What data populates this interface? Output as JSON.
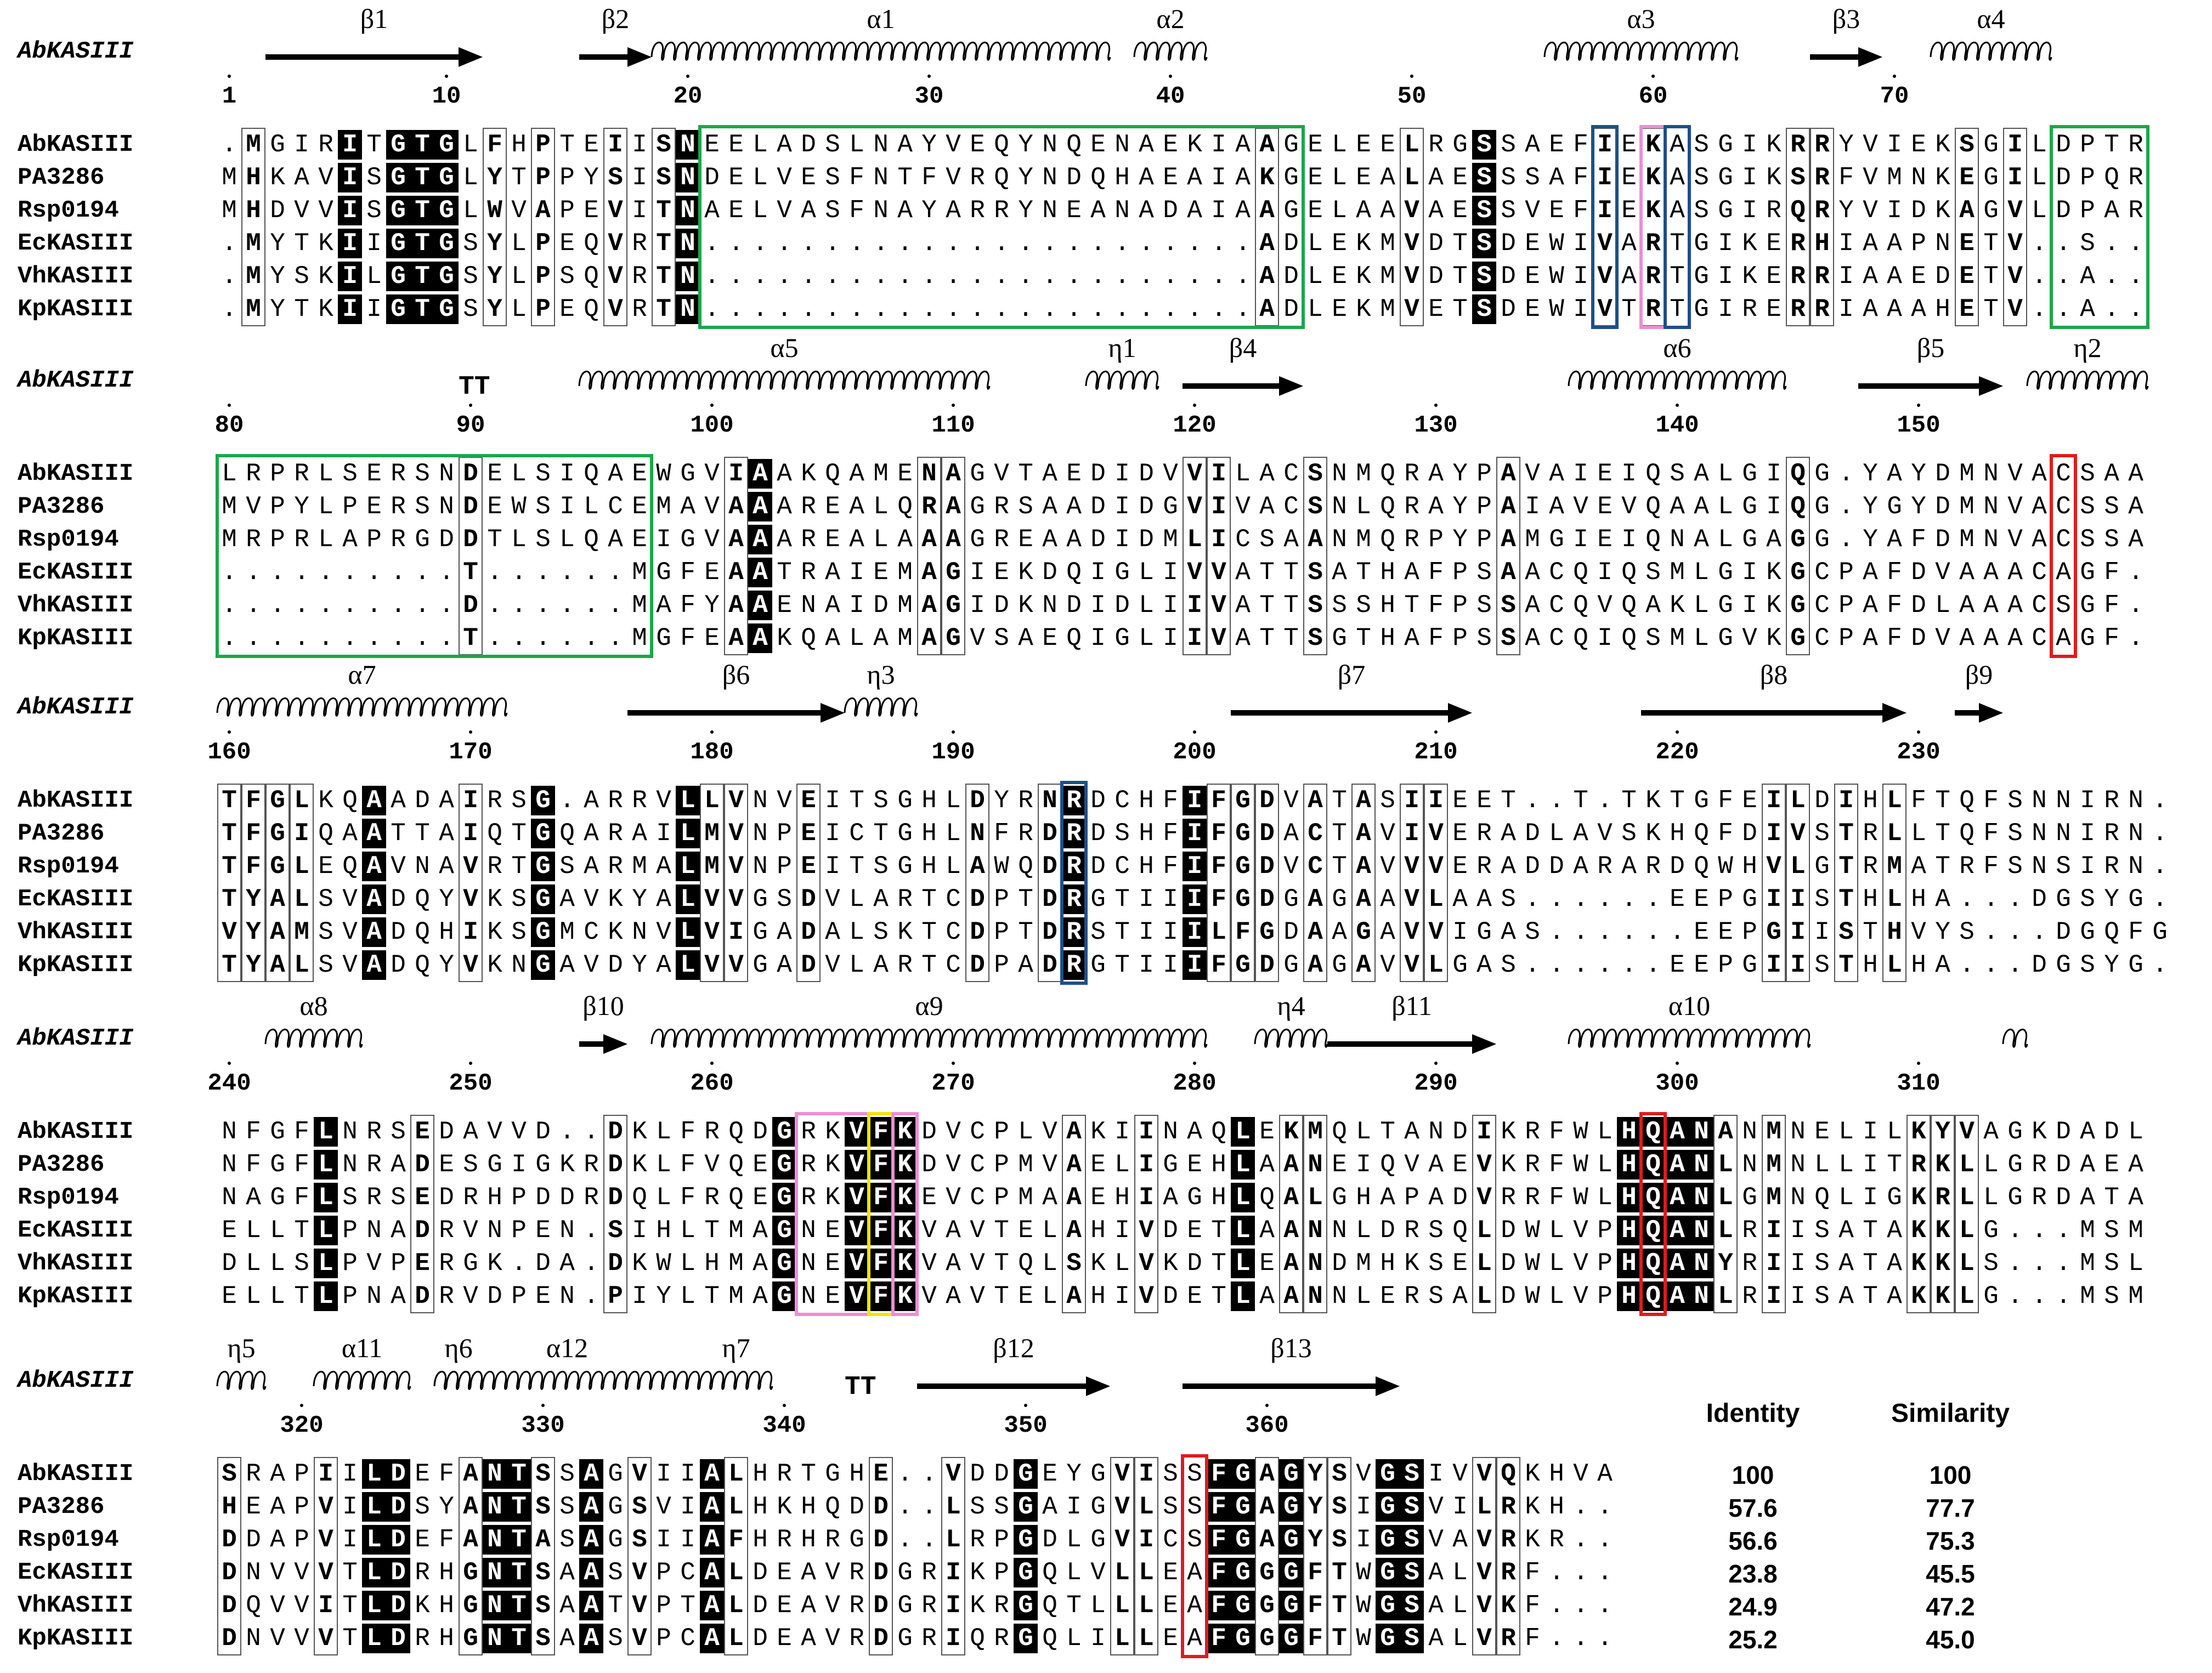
{
  "alignment": {
    "reference": "AbKASIII",
    "names": [
      "AbKASIII",
      "PA3286",
      "Rsp0194",
      "EcKASIII",
      "VhKASIII",
      "KpKASIII"
    ],
    "blocks": [
      {
        "start": 1,
        "sequences": [
          ".MGIRITGTGLFHPTEIISNEELADSLNAYVEQYNQENAEKIAAGELEELRGSSAEFIEKASGIKRRYVIEKSGILDPTR",
          "MHKAVISGTGLYTPPYSISNDELVESFNTFVRQYNDQHAEAIAKGELEALAESSSAFIEKASGIKSRFVMNKEGILDPQR",
          "MHDVVISGTGLWVAPEVITNAELVASFNAYARRYNEANADAIAAGELAAVAESSVEFIEKASGIRQRYVIDKAGVLDPAR",
          ".MYTKIIGTGSYLPEQVRTN.......................ADLEKMVDTSDEWIVARTGIKERHIAAPNETV..S.",
          ".MYSKILGTGSYLPSQVRTN.......................ADLEKMVDTSDEWIVARTGIKERRIAAEDETV..A.",
          ".MYTKIIGTGSYLPEQVRTN.......................ADLEKMVETSDEWIVTRTGIRERRIAAAHETV..A."
        ],
        "ticks": [
          1,
          10,
          20,
          30,
          40,
          50,
          60,
          70
        ],
        "elements": [
          {
            "type": "strand",
            "label": "β1",
            "from": 3,
            "to": 11
          },
          {
            "type": "strand",
            "label": "β2",
            "from": 16,
            "to": 18
          },
          {
            "type": "helix",
            "label": "α1",
            "from": 19,
            "to": 37
          },
          {
            "type": "helix",
            "label": "α2",
            "from": 39,
            "to": 41
          },
          {
            "type": "helix",
            "label": "α3",
            "from": 56,
            "to": 63
          },
          {
            "type": "strand",
            "label": "β3",
            "from": 67,
            "to": 69
          },
          {
            "type": "helix",
            "label": "α4",
            "from": 72,
            "to": 76
          }
        ]
      },
      {
        "start": 80,
        "sequences": [
          "LRPRLSERSNDELSIQAEWGVIAAKQAMENAGVTAEDIDVVILACSNMQRAYPAVAIEIQSALGIQG.YAYDMNVACSAA",
          "MVPYLPERSNDEWSILCEMAVAAAREALQRAGRSAADIDGVIVACSNLQRAYPAIAVEVQAALGIQG.YGYDMNVACSSA",
          "MRPRLAPRGDDTLSLQAEIGVAAAREALAAAGREAADIDMLICSAANMQRPYPAMGIEIQNALGAGG.YAFDMNVACSSA",
          "..........T......MGFEAATRAIEMAGIEKDQIGLIVVATTSATHAFPSAACQIQSMLGIKGCPAFDVAAACAGF",
          "..........D......MAFYAAENAIDMAGIDKNDIDLIIVATTSSSHTFPSSACQVQAKLGIKGCPAFDLAAACSGF",
          "..........T......MGFEAAKQALAMAGVSAEQIGLIIVATTSGTHAFPSSACQIQSMLGVKGCPAFDVAAACAGF"
        ],
        "ticks": [
          80,
          90,
          100,
          110,
          120,
          130,
          140,
          150
        ],
        "elements": [
          {
            "type": "turn",
            "label": "TT",
            "from": 90,
            "to": 91
          },
          {
            "type": "helix",
            "label": "α5",
            "from": 95,
            "to": 111
          },
          {
            "type": "helix",
            "label": "η1",
            "from": 116,
            "to": 118
          },
          {
            "type": "strand",
            "label": "β4",
            "from": 120,
            "to": 124
          },
          {
            "type": "helix",
            "label": "α6",
            "from": 136,
            "to": 144
          },
          {
            "type": "strand",
            "label": "β5",
            "from": 148,
            "to": 153
          },
          {
            "type": "helix",
            "label": "η2",
            "from": 155,
            "to": 159
          }
        ]
      },
      {
        "start": 160,
        "sequences": [
          "TFGLKQAADAIRSG.ARRVLLVNVEITSGHLDYRNRDCHFIFGDVATASIIEET..T.TKTGFEILDIHLFTQFSNNIRN",
          "TFGIQAATTAIQTGQARAILMVNPEICTGHLNFRDRDSHFIFGDACTAVIVERADLAVSKHQFDIVSTRLLTQFSNNIRN",
          "TFGLEQAVNAVRTGSARMALMVNPEITSGHLAWQDRDCHFIFGDVCTAVVVERADDARARDQWHVLGTRMATRFSNSIRN",
          "TYALSVADQYVKSGAVKYALVVGSDVLARTCDPTDRGTIIIFGDGAGAAVLAAS......EEPGIISTHLHA...DGSYG",
          "VYAMSVADQHIKSGMCKNVLVIGADALSKTCDPTDRSTIIILFGDAAGAVVIGAS......EEPGIISTHVYS...DGQFG",
          "TYALSVADQYVKNGAVDYALVVGADVLARTCDPADRGTIIIFGDGAGAVVLGAS......EEPGIISTHLHA...DGSYG"
        ],
        "ticks": [
          160,
          170,
          180,
          190,
          200,
          210,
          220,
          230
        ],
        "elements": [
          {
            "type": "helix",
            "label": "α7",
            "from": 160,
            "to": 171
          },
          {
            "type": "strand",
            "label": "β6",
            "from": 177,
            "to": 185
          },
          {
            "type": "helix",
            "label": "η3",
            "from": 186,
            "to": 188
          },
          {
            "type": "strand",
            "label": "β7",
            "from": 202,
            "to": 211
          },
          {
            "type": "strand",
            "label": "β8",
            "from": 219,
            "to": 229
          },
          {
            "type": "strand",
            "label": "β9",
            "from": 232,
            "to": 233
          }
        ]
      },
      {
        "start": 240,
        "sequences": [
          "NFGFLNRSEDAVVD..DKLFRQDGRKVFKDVCPLVAKIINAQLEKMQLTANDIKRFWLHQANANMNELILKYVAGKDADL",
          "NFGFLNRADESGIGKRDKLFVQEGRKVFKDVCPMVAELIGEHLAANEIQVAEVKRFWLHQANLNMNLLITRKLLGRDAEA",
          "NAGFLSRSEDRHPDDRDQLFRQEGRKVFKEVCPMAAEHIAGHLQALGHAPADVRRFWLHQANLGMNQLIGKRLLGRDATA",
          "ELLTLPNADRVNPEN.SIHLTMAGNEVFKVAVTELAHIVDETLAANNLDRSQLDWLVPHQANLRIISATAKKLG...MSM",
          "DLLSLPVPERGK.DA.DKWLHMAGNEVFKVAVTQLSKLVKDTLEANDMHKSELDWLVPHQANYRIISATAKKLS...MSL",
          "ELLTLPNADRVDPEN.PIYLTMAGNEVFKVAVTELAHIVDETLAANNLERSALDWLVPHQANLRIISATAKKLG...MSM"
        ],
        "ticks": [
          240,
          250,
          260,
          270,
          280,
          290,
          300,
          310
        ],
        "elements": [
          {
            "type": "helix",
            "label": "α8",
            "from": 242,
            "to": 245
          },
          {
            "type": "strand",
            "label": "β10",
            "from": 255,
            "to": 256
          },
          {
            "type": "helix",
            "label": "α9",
            "from": 258,
            "to": 280
          },
          {
            "type": "helix",
            "label": "η4",
            "from": 283,
            "to": 285
          },
          {
            "type": "strand",
            "label": "β11",
            "from": 286,
            "to": 292
          },
          {
            "type": "helix",
            "label": "α10",
            "from": 296,
            "to": 305
          },
          {
            "type": "helix",
            "label": "",
            "from": 314,
            "to": 314
          }
        ]
      },
      {
        "start": 317,
        "sequences": [
          "SRAPIILDEFANTSSAGVIIALHRTGHE..VDDGEYGVISSFGAGYSVGSIVVQKHVA",
          "HEAPVILDSYANTSSAGSVIALHKHQDD..LSSGAIGVLSSFGAGYSIGSVILRKH..",
          "DDAPVILDEFANTASAGSIIAFHRHRGD..LRPGDLGVICSFGAGYSIGSVAVRKR..",
          "DNVVVTLDRHGNTSAASVPCALDEAVRDGRIKPGQLVLLEAFGGGFTWGSALVRF...",
          "DQVVITLDKHGNTSAATVPTALDEAVRDGRIKRGQTLLLEAFGGGFTWGSALVKF...",
          "DNVVVTLDRHGNTSAASVPCALDEAVRDGRIQRGQLILLEAFGGGFTWGSALVRF..."
        ],
        "ticks": [
          320,
          330,
          340,
          350,
          360
        ],
        "elements": [
          {
            "type": "helix",
            "label": "η5",
            "from": 317,
            "to": 318
          },
          {
            "type": "helix",
            "label": "α11",
            "from": 321,
            "to": 324
          },
          {
            "type": "helix",
            "label": "η6",
            "from": 326,
            "to": 327
          },
          {
            "type": "helix",
            "label": "α12",
            "from": 326,
            "to": 336
          },
          {
            "type": "helix",
            "label": "η7",
            "from": 337,
            "to": 339
          },
          {
            "type": "turn",
            "label": "TT",
            "from": 343,
            "to": 344
          },
          {
            "type": "strand",
            "label": "β12",
            "from": 346,
            "to": 353
          },
          {
            "type": "strand",
            "label": "β13",
            "from": 357,
            "to": 365
          }
        ]
      }
    ]
  },
  "identity_table": {
    "identity_header": "Identity",
    "similarity_header": "Similarity",
    "rows": [
      {
        "identity": "100",
        "similarity": "100"
      },
      {
        "identity": "57.6",
        "similarity": "77.7"
      },
      {
        "identity": "56.6",
        "similarity": "75.3"
      },
      {
        "identity": "23.8",
        "similarity": "45.5"
      },
      {
        "identity": "24.9",
        "similarity": "47.2"
      },
      {
        "identity": "25.2",
        "similarity": "45.0"
      }
    ]
  },
  "highlight_colors": {
    "green": "#1aa84a",
    "blue": "#1f4e8c",
    "pink": "#f08cd2",
    "red": "#e01b1b",
    "yellow": "#f2e500"
  },
  "highlights": [
    {
      "color": "green",
      "block": 0,
      "from_col": 20,
      "to_col": 44
    },
    {
      "color": "green",
      "block": 0,
      "from_col": 76,
      "to_col": 79
    },
    {
      "color": "green",
      "block": 1,
      "from_col": 0,
      "to_col": 17
    },
    {
      "color": "blue",
      "block": 0,
      "from_col": 57,
      "to_col": 57
    },
    {
      "color": "pink",
      "block": 0,
      "from_col": 59,
      "to_col": 59
    },
    {
      "color": "blue",
      "block": 0,
      "from_col": 60,
      "to_col": 60
    },
    {
      "color": "red",
      "block": 1,
      "from_col": 76,
      "to_col": 76
    },
    {
      "color": "blue",
      "block": 2,
      "from_col": 35,
      "to_col": 35
    },
    {
      "color": "pink",
      "block": 3,
      "from_col": 24,
      "to_col": 26
    },
    {
      "color": "yellow",
      "block": 3,
      "from_col": 27,
      "to_col": 27
    },
    {
      "color": "pink",
      "block": 3,
      "from_col": 28,
      "to_col": 28
    },
    {
      "color": "red",
      "block": 3,
      "from_col": 59,
      "to_col": 59
    },
    {
      "color": "red",
      "block": 4,
      "from_col": 40,
      "to_col": 40
    }
  ]
}
